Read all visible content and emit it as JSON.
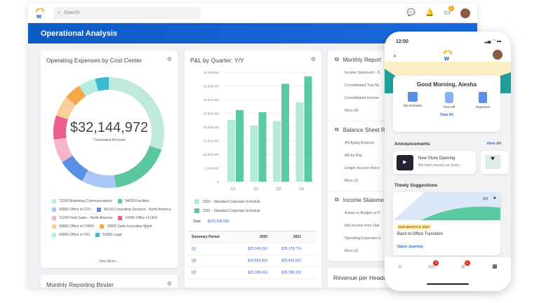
{
  "topbar": {
    "search_placeholder": "Search",
    "inbox_badge": "1"
  },
  "banner": {
    "title": "Operational Analysis"
  },
  "opex": {
    "title": "Operating Expenses by Cost Center",
    "total": "$32,144,972",
    "total_label": "Translated Amount",
    "view_more": "View More ...",
    "segments": [
      {
        "label": "72200 Marketing Communications",
        "color": "#bfe9da",
        "share": 0.3
      },
      {
        "label": "34000 Facilities",
        "color": "#5cc79e",
        "share": 0.18
      },
      {
        "label": "50000 Office of CFO",
        "color": "#a9c8f5",
        "share": 0.1
      },
      {
        "label": "36100 Consulting Services - North America",
        "color": "#5b8fe6",
        "share": 0.08
      },
      {
        "label": "71200 Field Sales - North America",
        "color": "#f5b7c8",
        "share": 0.07
      },
      {
        "label": "10000 Office of CEO",
        "color": "#ec5f8a",
        "share": 0.07
      },
      {
        "label": "40000 Office of CHRO",
        "color": "#f8cf9b",
        "share": 0.06
      },
      {
        "label": "70000 Sales Executive Mgmt",
        "color": "#f3a947",
        "share": 0.05
      },
      {
        "label": "60000 Office of CIO",
        "color": "#b5ece2",
        "share": 0.05
      },
      {
        "label": "53000 Legal",
        "color": "#39bcd0",
        "share": 0.04
      }
    ]
  },
  "pl": {
    "title": "P&L by Quarter: Y/Y",
    "total_label": "Total",
    "total": "$220,336,936",
    "table": {
      "headers": [
        "Summary Period",
        "2020",
        "2021"
      ],
      "rows": [
        [
          "Q1",
          "$22,545,016",
          "$26,178,774"
        ],
        [
          "Q2",
          "$20,563,924",
          "$25,429,515"
        ],
        [
          "Q3",
          "$22,189,914",
          "$35,780,129"
        ]
      ]
    }
  },
  "chart_data": {
    "type": "bar",
    "categories": [
      "Q1",
      "Q2",
      "Q3",
      "Q4"
    ],
    "ylim": [
      0,
      40000000
    ],
    "yticks": [
      "0",
      "5,000,000",
      "10,000,000",
      "15,000,000",
      "20,000,000",
      "25,000,000",
      "30,000,000",
      "35,000,000",
      "40,000,000"
    ],
    "series": [
      {
        "name": "2020 - Standard Corporate Schedule",
        "color": "#b3ead6",
        "values": [
          22545016,
          20563924,
          22189914,
          29000000
        ]
      },
      {
        "name": "2021 - Standard Corporate Schedule",
        "color": "#5ccaa0",
        "values": [
          26178774,
          25429515,
          35780129,
          38500000
        ]
      }
    ]
  },
  "reports": {
    "sections": [
      {
        "title": "Monthly Report",
        "items": [
          "Income Statement - S",
          "Consolidated Trial Ba",
          "Consolidated Income",
          "More (4)"
        ]
      },
      {
        "title": "Balance Sheet R",
        "items": [
          "AR Aging Analysis",
          "AR by Rep",
          "Ledger Account Reco",
          "More (3)"
        ]
      },
      {
        "title": "Income Stateme",
        "items": [
          "Actual vs Budget vs P",
          "Net Income from Ope",
          "Operating Expenses b",
          "More (2)"
        ]
      }
    ]
  },
  "bottom": {
    "binder": "Monthly Reporting Binder",
    "revenue": "Revenue per Headco"
  },
  "phone": {
    "time": "12:00",
    "greeting": "Good Morning, Aiesha",
    "apps": [
      "My Schedule",
      "Time Off",
      "Expenses"
    ],
    "view_all": "View All",
    "announcements": "Announcements",
    "ann_view_all": "View All",
    "ann_title": "New Store Opening",
    "ann_text": "We have moved our busin...",
    "timely": "Timely Suggestions",
    "progress": "0/3",
    "due": "DUE MARCH 8, 2023",
    "task": "Back to Office Transition",
    "open": "Open Journey",
    "badges": [
      "1",
      "1"
    ]
  }
}
